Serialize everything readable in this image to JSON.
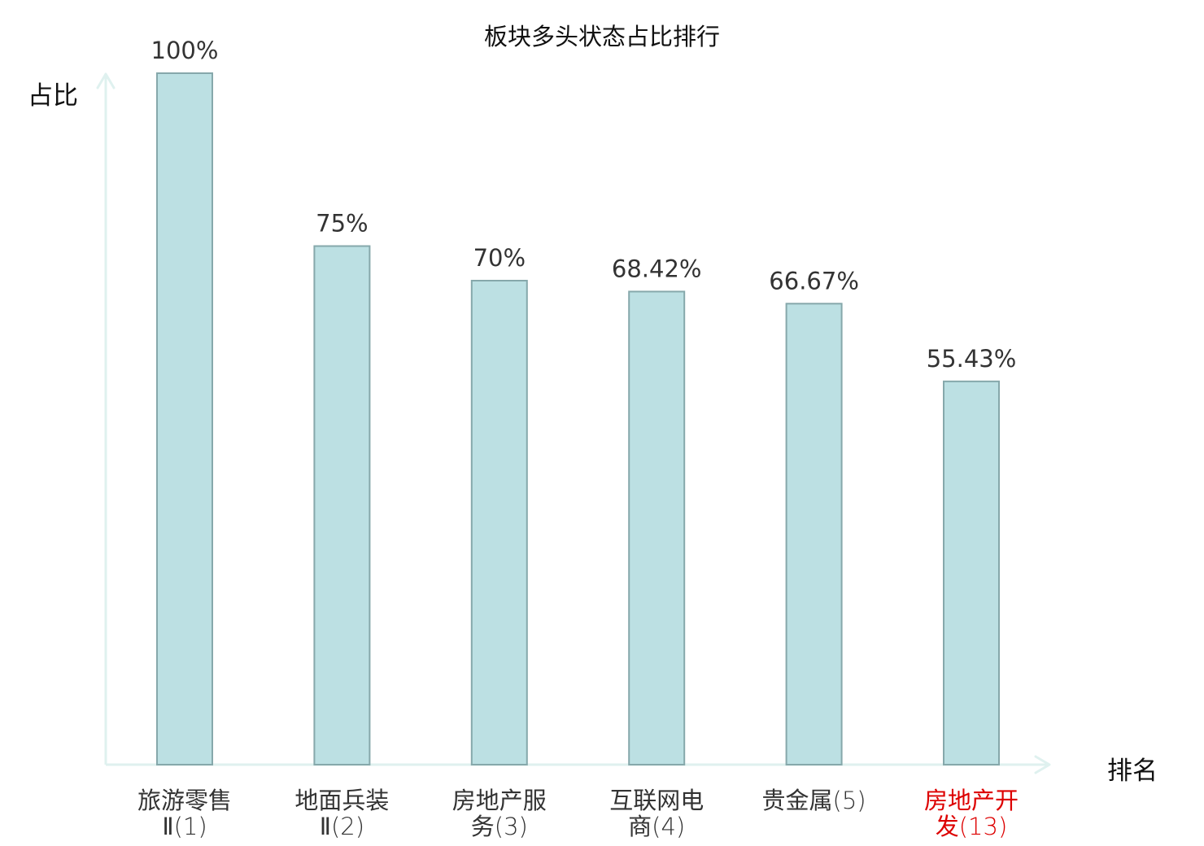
{
  "colors": {
    "bar_fill": "#bce0e3",
    "bar_stroke": "#86a8ab",
    "axis": "#dff1ef",
    "label_default": "#333333",
    "label_highlight": "#dd0000",
    "value_label": "#333333"
  },
  "chart_data": {
    "type": "bar",
    "title": "板块多头状态占比排行",
    "xlabel": "排名",
    "ylabel": "占比",
    "ylim": [
      0,
      100
    ],
    "grid": false,
    "categories": [
      {
        "name_lines": [
          "旅游零售",
          "Ⅱ"
        ],
        "rank": "(1)",
        "highlight": false
      },
      {
        "name_lines": [
          "地面兵装",
          "Ⅱ"
        ],
        "rank": "(2)",
        "highlight": false
      },
      {
        "name_lines": [
          "房地产服",
          "务"
        ],
        "rank": "(3)",
        "highlight": false
      },
      {
        "name_lines": [
          "互联网电",
          "商"
        ],
        "rank": "(4)",
        "highlight": false
      },
      {
        "name_lines": [
          "贵金属"
        ],
        "rank": "(5)",
        "highlight": false
      },
      {
        "name_lines": [
          "房地产开",
          "发"
        ],
        "rank": "(13)",
        "highlight": true
      }
    ],
    "values": [
      100,
      75,
      70,
      68.42,
      66.67,
      55.43
    ],
    "value_labels": [
      "100%",
      "75%",
      "70%",
      "68.42%",
      "66.67%",
      "55.43%"
    ]
  }
}
